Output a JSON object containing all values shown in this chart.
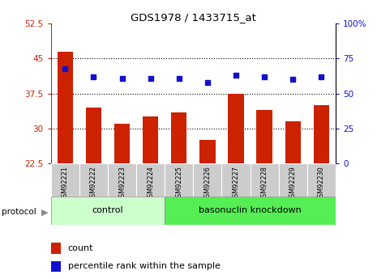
{
  "title": "GDS1978 / 1433715_at",
  "samples": [
    "GSM92221",
    "GSM92222",
    "GSM92223",
    "GSM92224",
    "GSM92225",
    "GSM92226",
    "GSM92227",
    "GSM92228",
    "GSM92229",
    "GSM92230"
  ],
  "count_values": [
    46.5,
    34.5,
    31.0,
    32.5,
    33.5,
    27.5,
    37.5,
    34.0,
    31.5,
    35.0
  ],
  "percentile_values": [
    68,
    62,
    61,
    61,
    61,
    58,
    63,
    62,
    60,
    62
  ],
  "ylim_left": [
    22.5,
    52.5
  ],
  "ylim_right": [
    0,
    100
  ],
  "yticks_left": [
    22.5,
    30,
    37.5,
    45,
    52.5
  ],
  "yticks_right": [
    0,
    25,
    50,
    75,
    100
  ],
  "bar_color": "#cc2200",
  "dot_color": "#1111cc",
  "bg_color": "#ffffff",
  "control_label": "control",
  "knockdown_label": "basonuclin knockdown",
  "protocol_label": "protocol",
  "control_color": "#ccffcc",
  "knockdown_color": "#55ee55",
  "xticklabel_bg": "#cccccc",
  "legend_count_label": "count",
  "legend_percentile_label": "percentile rank within the sample",
  "grid_yticks": [
    30,
    37.5,
    45
  ],
  "n_control": 4,
  "n_knockdown": 6
}
